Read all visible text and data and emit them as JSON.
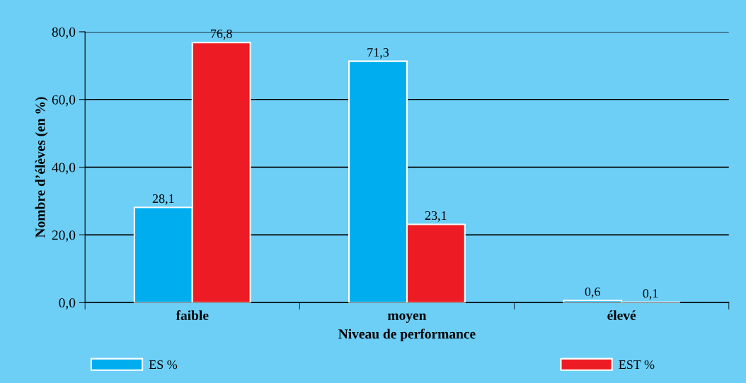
{
  "chart_data": {
    "type": "bar",
    "xlabel": "Niveau de performance",
    "ylabel": "Nombre d’élèves (en %)",
    "categories": [
      "faible",
      "moyen",
      "élevé"
    ],
    "series": [
      {
        "name": "ES %",
        "color": "#00aeef",
        "values": [
          28.1,
          71.3,
          0.6
        ],
        "value_labels": [
          "28,1",
          "71,3",
          "0,6"
        ]
      },
      {
        "name": "EST %",
        "color": "#ed1c24",
        "values": [
          76.8,
          23.1,
          0.1
        ],
        "value_labels": [
          "76,8",
          "23,1",
          "0,1"
        ]
      }
    ],
    "ylim": [
      0,
      80
    ],
    "yticks": [
      {
        "value": 0,
        "label": "0,0"
      },
      {
        "value": 20,
        "label": "20,0"
      },
      {
        "value": 40,
        "label": "40,0"
      },
      {
        "value": 60,
        "label": "60,0"
      },
      {
        "value": 80,
        "label": "80,0"
      }
    ],
    "grid": "y",
    "legend": "bottom"
  }
}
